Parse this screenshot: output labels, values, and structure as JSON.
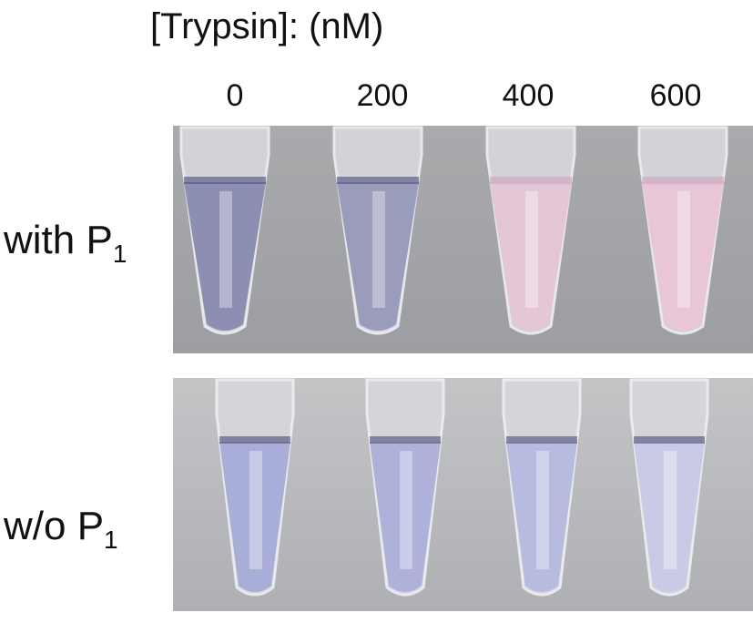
{
  "header": {
    "title": "[Trypsin]: (nM)"
  },
  "concentrations": [
    0,
    200,
    400,
    600
  ],
  "rows": [
    {
      "label": "with P",
      "subscript": "1"
    },
    {
      "label": "w/o P",
      "subscript": "1"
    }
  ]
}
